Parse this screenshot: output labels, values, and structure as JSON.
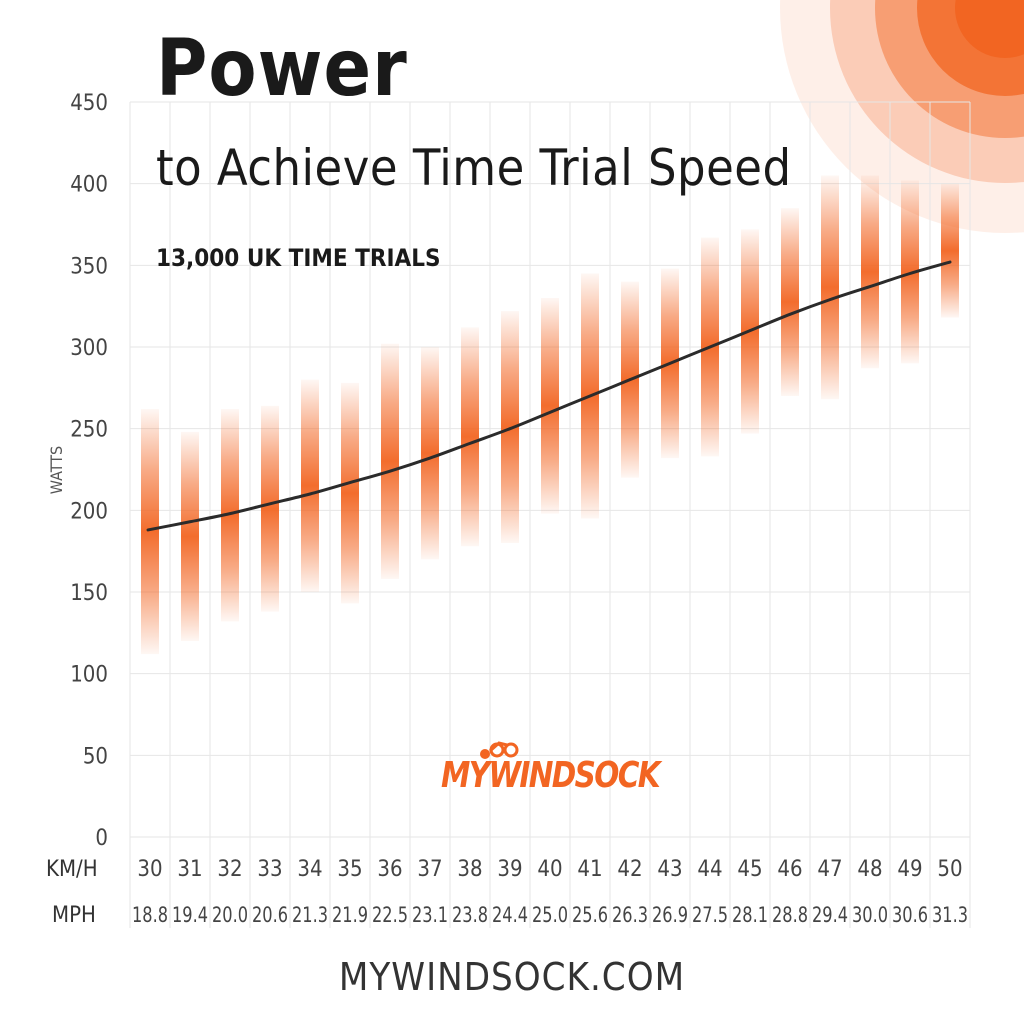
{
  "title": "Power",
  "subtitle": "to Achieve Time Trial Speed",
  "note": "13,000 UK TIME TRIALS",
  "footer": "MYWINDSOCK.COM",
  "logo_text": "MYWINDSOCK",
  "colors": {
    "accent": "#f26522",
    "line": "#2b2b2b",
    "text": "#444444",
    "grid": "#e6e6e6"
  },
  "chart_data": {
    "type": "line",
    "ylabel": "WATTS",
    "xlabel": "",
    "row_labels": [
      "KM/H",
      "MPH"
    ],
    "ylim": [
      0,
      450
    ],
    "yticks": [
      0,
      50,
      100,
      150,
      200,
      250,
      300,
      350,
      400,
      450
    ],
    "grid": true,
    "categories_kmh": [
      "30",
      "31",
      "32",
      "33",
      "34",
      "35",
      "36",
      "37",
      "38",
      "39",
      "40",
      "41",
      "42",
      "43",
      "44",
      "45",
      "46",
      "47",
      "48",
      "49",
      "50"
    ],
    "categories_mph": [
      "18.8",
      "19.4",
      "20.0",
      "20.6",
      "21.3",
      "21.9",
      "22.5",
      "23.1",
      "23.8",
      "24.4",
      "25.0",
      "25.6",
      "26.3",
      "26.9",
      "27.5",
      "28.1",
      "28.8",
      "29.4",
      "30.0",
      "30.6",
      "31.3"
    ],
    "series": [
      {
        "type": "line",
        "values": [
          188,
          193,
          198,
          204,
          210,
          217,
          224,
          232,
          241,
          250,
          260,
          270,
          280,
          290,
          300,
          310,
          320,
          329,
          337,
          345,
          352
        ]
      }
    ],
    "ranges": {
      "low": [
        112,
        120,
        132,
        138,
        150,
        143,
        158,
        170,
        178,
        180,
        198,
        195,
        220,
        232,
        233,
        247,
        270,
        268,
        287,
        290,
        318
      ],
      "high": [
        262,
        248,
        262,
        264,
        280,
        278,
        302,
        300,
        312,
        322,
        330,
        345,
        340,
        348,
        367,
        372,
        385,
        405,
        405,
        402,
        400
      ]
    }
  }
}
